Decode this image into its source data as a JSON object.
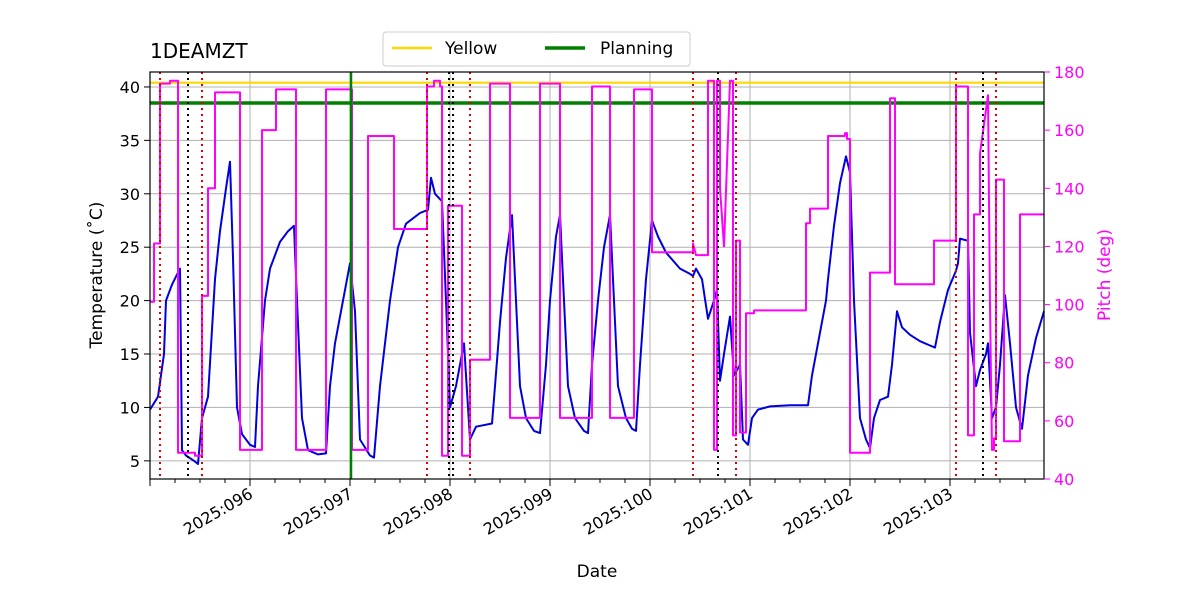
{
  "chart_data": {
    "type": "line",
    "title": "1DEAMZT",
    "xlabel": "Date",
    "ylabel": "Temperature ($^\\circ$C)",
    "y2label": "Pitch (deg)",
    "xlim": [
      95.0,
      103.94
    ],
    "ylim": [
      3.3,
      41.4
    ],
    "y2lim": [
      40,
      180
    ],
    "grid": true,
    "legend_position": "top-center",
    "x_ticks": [
      {
        "value": 96,
        "label": "2025:096"
      },
      {
        "value": 97,
        "label": "2025:097"
      },
      {
        "value": 98,
        "label": "2025:098"
      },
      {
        "value": 99,
        "label": "2025:099"
      },
      {
        "value": 100,
        "label": "2025:100"
      },
      {
        "value": 101,
        "label": "2025:101"
      },
      {
        "value": 102,
        "label": "2025:102"
      },
      {
        "value": 103,
        "label": "2025:103"
      }
    ],
    "y_ticks": [
      {
        "value": 5,
        "label": "5"
      },
      {
        "value": 10,
        "label": "10"
      },
      {
        "value": 15,
        "label": "15"
      },
      {
        "value": 20,
        "label": "20"
      },
      {
        "value": 25,
        "label": "25"
      },
      {
        "value": 30,
        "label": "30"
      },
      {
        "value": 35,
        "label": "35"
      },
      {
        "value": 40,
        "label": "40"
      }
    ],
    "y2_ticks": [
      {
        "value": 40,
        "label": "40"
      },
      {
        "value": 60,
        "label": "60"
      },
      {
        "value": 80,
        "label": "80"
      },
      {
        "value": 100,
        "label": "100"
      },
      {
        "value": 120,
        "label": "120"
      },
      {
        "value": 140,
        "label": "140"
      },
      {
        "value": 160,
        "label": "160"
      },
      {
        "value": 180,
        "label": "180"
      }
    ],
    "hlines": [
      {
        "name": "Yellow",
        "value": 40.4,
        "color": "#ffd700"
      },
      {
        "name": "Planning",
        "value": 38.5,
        "color": "#008000"
      }
    ],
    "legend": [
      {
        "label": "Yellow",
        "color": "#ffd700"
      },
      {
        "label": "Planning",
        "color": "#008000"
      }
    ],
    "vlines_green": [
      97.01
    ],
    "vlines_black": [
      95.38,
      97.99,
      98.03,
      100.68,
      103.33
    ],
    "vlines_red": [
      95.1,
      95.52,
      97.77,
      98.2,
      100.43,
      100.86,
      103.06,
      103.46
    ],
    "series": [
      {
        "color": "#0000dd",
        "axis": "left",
        "points": [
          [
            95.0,
            9.8
          ],
          [
            95.08,
            11
          ],
          [
            95.14,
            15
          ],
          [
            95.16,
            20
          ],
          [
            95.22,
            21.5
          ],
          [
            95.3,
            23
          ],
          [
            95.32,
            6
          ],
          [
            95.36,
            5.5
          ],
          [
            95.44,
            5
          ],
          [
            95.48,
            4.7
          ],
          [
            95.52,
            9
          ],
          [
            95.58,
            11
          ],
          [
            95.65,
            22
          ],
          [
            95.7,
            26.5
          ],
          [
            95.76,
            30.5
          ],
          [
            95.8,
            33
          ],
          [
            95.83,
            24
          ],
          [
            95.87,
            10
          ],
          [
            95.92,
            7.5
          ],
          [
            96.0,
            6.5
          ],
          [
            96.05,
            6.3
          ],
          [
            96.08,
            12
          ],
          [
            96.15,
            20
          ],
          [
            96.2,
            23
          ],
          [
            96.3,
            25.5
          ],
          [
            96.38,
            26.5
          ],
          [
            96.44,
            27
          ],
          [
            96.47,
            20
          ],
          [
            96.52,
            9
          ],
          [
            96.58,
            6
          ],
          [
            96.68,
            5.6
          ],
          [
            96.76,
            5.7
          ],
          [
            96.8,
            12
          ],
          [
            96.85,
            16
          ],
          [
            96.95,
            21
          ],
          [
            97.0,
            23.5
          ],
          [
            97.05,
            19
          ],
          [
            97.1,
            7
          ],
          [
            97.2,
            5.5
          ],
          [
            97.24,
            5.3
          ],
          [
            97.3,
            12
          ],
          [
            97.4,
            20
          ],
          [
            97.48,
            25
          ],
          [
            97.56,
            27.2
          ],
          [
            97.7,
            28.2
          ],
          [
            97.78,
            28.5
          ],
          [
            97.81,
            31.5
          ],
          [
            97.85,
            30
          ],
          [
            97.92,
            29.3
          ],
          [
            97.96,
            20
          ],
          [
            98.0,
            10
          ],
          [
            98.06,
            12
          ],
          [
            98.14,
            16
          ],
          [
            98.2,
            7
          ],
          [
            98.26,
            8.2
          ],
          [
            98.42,
            8.5
          ],
          [
            98.45,
            12
          ],
          [
            98.5,
            18
          ],
          [
            98.56,
            24
          ],
          [
            98.62,
            28
          ],
          [
            98.64,
            24
          ],
          [
            98.7,
            12
          ],
          [
            98.76,
            9
          ],
          [
            98.84,
            7.8
          ],
          [
            98.9,
            7.6
          ],
          [
            98.96,
            14
          ],
          [
            99.0,
            20
          ],
          [
            99.06,
            26
          ],
          [
            99.1,
            28
          ],
          [
            99.12,
            24
          ],
          [
            99.18,
            12
          ],
          [
            99.25,
            9
          ],
          [
            99.34,
            7.8
          ],
          [
            99.38,
            7.6
          ],
          [
            99.42,
            14
          ],
          [
            99.48,
            20
          ],
          [
            99.54,
            25
          ],
          [
            99.6,
            28
          ],
          [
            99.62,
            24
          ],
          [
            99.68,
            12
          ],
          [
            99.76,
            9
          ],
          [
            99.82,
            8
          ],
          [
            99.86,
            7.8
          ],
          [
            99.9,
            14
          ],
          [
            99.96,
            22
          ],
          [
            100.02,
            27.5
          ],
          [
            100.08,
            26
          ],
          [
            100.16,
            24.5
          ],
          [
            100.3,
            23
          ],
          [
            100.4,
            22.5
          ],
          [
            100.43,
            22.3
          ],
          [
            100.46,
            23
          ],
          [
            100.52,
            22
          ],
          [
            100.58,
            18.3
          ],
          [
            100.64,
            20
          ],
          [
            100.67,
            21
          ],
          [
            100.7,
            12.5
          ],
          [
            100.74,
            15
          ],
          [
            100.8,
            18.5
          ],
          [
            100.84,
            13
          ],
          [
            100.9,
            14
          ],
          [
            100.93,
            7
          ],
          [
            100.98,
            6.5
          ],
          [
            101.02,
            9
          ],
          [
            101.08,
            9.8
          ],
          [
            101.2,
            10.1
          ],
          [
            101.4,
            10.2
          ],
          [
            101.58,
            10.2
          ],
          [
            101.62,
            13
          ],
          [
            101.68,
            16
          ],
          [
            101.76,
            20
          ],
          [
            101.78,
            22
          ],
          [
            101.84,
            27
          ],
          [
            101.9,
            31
          ],
          [
            101.96,
            33.5
          ],
          [
            102.0,
            32
          ],
          [
            102.04,
            20
          ],
          [
            102.1,
            9
          ],
          [
            102.16,
            7
          ],
          [
            102.2,
            6.2
          ],
          [
            102.24,
            9
          ],
          [
            102.3,
            10.7
          ],
          [
            102.38,
            11
          ],
          [
            102.42,
            14
          ],
          [
            102.47,
            19
          ],
          [
            102.52,
            17.5
          ],
          [
            102.6,
            16.8
          ],
          [
            102.7,
            16.2
          ],
          [
            102.8,
            15.8
          ],
          [
            102.85,
            15.6
          ],
          [
            102.9,
            18
          ],
          [
            102.98,
            21
          ],
          [
            103.06,
            22.8
          ],
          [
            103.08,
            23.5
          ],
          [
            103.1,
            25.8
          ],
          [
            103.18,
            25.6
          ],
          [
            103.2,
            17
          ],
          [
            103.26,
            12
          ],
          [
            103.3,
            13.5
          ],
          [
            103.36,
            15
          ],
          [
            103.38,
            16
          ],
          [
            103.42,
            9
          ],
          [
            103.46,
            10
          ],
          [
            103.5,
            14
          ],
          [
            103.55,
            20.5
          ],
          [
            103.6,
            16
          ],
          [
            103.66,
            10
          ],
          [
            103.72,
            8
          ],
          [
            103.78,
            13
          ],
          [
            103.86,
            16.5
          ],
          [
            103.94,
            19
          ]
        ]
      },
      {
        "color": "#ff00ff",
        "axis": "right",
        "points": [
          [
            95.0,
            101
          ],
          [
            95.04,
            101
          ],
          [
            95.04,
            121
          ],
          [
            95.1,
            121
          ],
          [
            95.1,
            176
          ],
          [
            95.2,
            176
          ],
          [
            95.2,
            177
          ],
          [
            95.28,
            177
          ],
          [
            95.28,
            49
          ],
          [
            95.45,
            49
          ],
          [
            95.45,
            48
          ],
          [
            95.52,
            48
          ],
          [
            95.52,
            103
          ],
          [
            95.58,
            103
          ],
          [
            95.58,
            140
          ],
          [
            95.65,
            140
          ],
          [
            95.65,
            173
          ],
          [
            95.9,
            173
          ],
          [
            95.9,
            50
          ],
          [
            96.12,
            50
          ],
          [
            96.12,
            160
          ],
          [
            96.26,
            160
          ],
          [
            96.26,
            174
          ],
          [
            96.46,
            174
          ],
          [
            96.46,
            50
          ],
          [
            96.76,
            50
          ],
          [
            96.76,
            174
          ],
          [
            97.02,
            174
          ],
          [
            97.02,
            50
          ],
          [
            97.18,
            50
          ],
          [
            97.18,
            158
          ],
          [
            97.44,
            158
          ],
          [
            97.44,
            126
          ],
          [
            97.77,
            126
          ],
          [
            97.77,
            175
          ],
          [
            97.84,
            175
          ],
          [
            97.84,
            177
          ],
          [
            97.9,
            177
          ],
          [
            97.9,
            175
          ],
          [
            97.92,
            175
          ],
          [
            97.92,
            48
          ],
          [
            97.98,
            48
          ],
          [
            97.98,
            134
          ],
          [
            98.12,
            134
          ],
          [
            98.12,
            48
          ],
          [
            98.2,
            48
          ],
          [
            98.2,
            81
          ],
          [
            98.4,
            81
          ],
          [
            98.4,
            176
          ],
          [
            98.6,
            176
          ],
          [
            98.6,
            61
          ],
          [
            98.9,
            61
          ],
          [
            98.9,
            176
          ],
          [
            99.1,
            176
          ],
          [
            99.1,
            61
          ],
          [
            99.42,
            61
          ],
          [
            99.42,
            175
          ],
          [
            99.6,
            175
          ],
          [
            99.6,
            61
          ],
          [
            99.84,
            61
          ],
          [
            99.84,
            174
          ],
          [
            100.02,
            174
          ],
          [
            100.02,
            118
          ],
          [
            100.43,
            118
          ],
          [
            100.43,
            121
          ],
          [
            100.46,
            117
          ],
          [
            100.58,
            117
          ],
          [
            100.58,
            177
          ],
          [
            100.64,
            177
          ],
          [
            100.64,
            50
          ],
          [
            100.67,
            50
          ],
          [
            100.67,
            177
          ],
          [
            100.7,
            177
          ],
          [
            100.7,
            140
          ],
          [
            100.74,
            120
          ],
          [
            100.8,
            177
          ],
          [
            100.83,
            177
          ],
          [
            100.83,
            55
          ],
          [
            100.86,
            55
          ],
          [
            100.86,
            122
          ],
          [
            100.9,
            122
          ],
          [
            100.9,
            56
          ],
          [
            100.96,
            56
          ],
          [
            100.96,
            97
          ],
          [
            101.04,
            97
          ],
          [
            101.04,
            98
          ],
          [
            101.56,
            98
          ],
          [
            101.56,
            128
          ],
          [
            101.6,
            128
          ],
          [
            101.6,
            133
          ],
          [
            101.78,
            133
          ],
          [
            101.78,
            158
          ],
          [
            101.95,
            158
          ],
          [
            101.95,
            159
          ],
          [
            101.97,
            159
          ],
          [
            101.97,
            157
          ],
          [
            102.0,
            157
          ],
          [
            102.0,
            49
          ],
          [
            102.2,
            49
          ],
          [
            102.2,
            111
          ],
          [
            102.4,
            111
          ],
          [
            102.4,
            171
          ],
          [
            102.45,
            171
          ],
          [
            102.45,
            107
          ],
          [
            102.84,
            107
          ],
          [
            102.84,
            122
          ],
          [
            103.06,
            122
          ],
          [
            103.06,
            175
          ],
          [
            103.18,
            175
          ],
          [
            103.18,
            55
          ],
          [
            103.24,
            55
          ],
          [
            103.24,
            131
          ],
          [
            103.3,
            131
          ],
          [
            103.3,
            152
          ],
          [
            103.38,
            172
          ],
          [
            103.4,
            100
          ],
          [
            103.42,
            50
          ],
          [
            103.44,
            50
          ],
          [
            103.44,
            54
          ],
          [
            103.46,
            54
          ],
          [
            103.46,
            143
          ],
          [
            103.54,
            143
          ],
          [
            103.54,
            53
          ],
          [
            103.7,
            53
          ],
          [
            103.7,
            131
          ],
          [
            103.94,
            131
          ]
        ]
      }
    ]
  }
}
